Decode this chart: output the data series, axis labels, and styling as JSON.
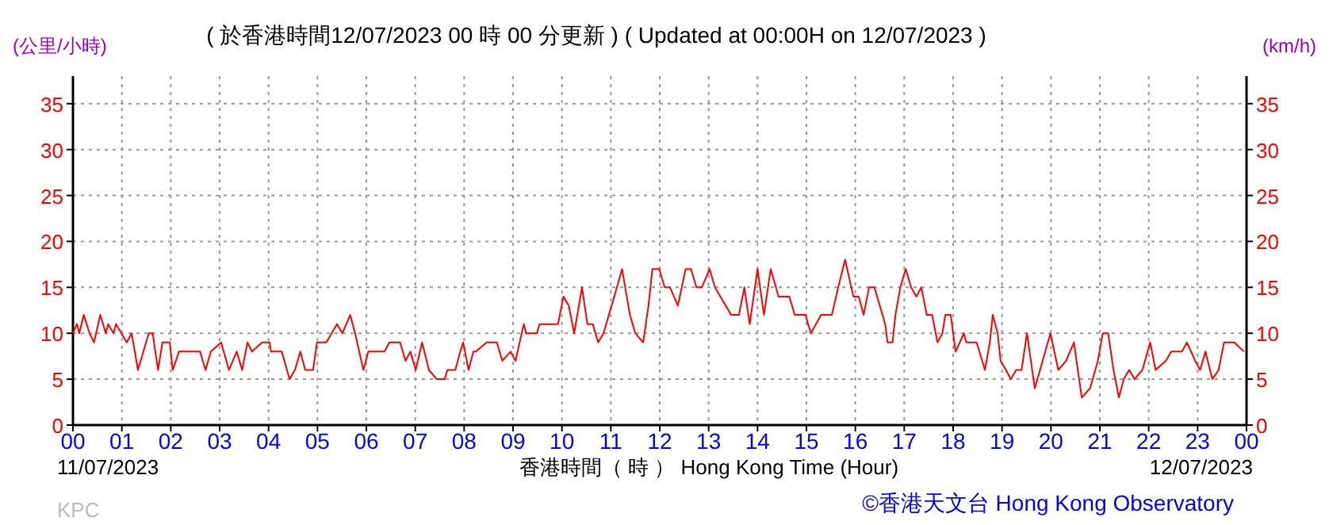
{
  "chart_data": {
    "type": "line",
    "title": "( 於香港時間12/07/2023 00 時 00 分更新 ) ( Updated at 00:00H on 12/07/2023 )",
    "xlabel": "香港時間（ 時 ） Hong Kong Time (Hour)",
    "ylabel": "(公里/小時)",
    "y2label": "(km/h)",
    "annotations": [
      "11/07/2023",
      "12/07/2023",
      "KPC",
      "©香港天文台 Hong Kong Observatory"
    ],
    "xlim": [
      0,
      24
    ],
    "xticks": [
      {
        "value": 0,
        "label": "00"
      },
      {
        "value": 1,
        "label": "01"
      },
      {
        "value": 2,
        "label": "02"
      },
      {
        "value": 3,
        "label": "03"
      },
      {
        "value": 4,
        "label": "04"
      },
      {
        "value": 5,
        "label": "05"
      },
      {
        "value": 6,
        "label": "06"
      },
      {
        "value": 7,
        "label": "07"
      },
      {
        "value": 8,
        "label": "08"
      },
      {
        "value": 9,
        "label": "09"
      },
      {
        "value": 10,
        "label": "10"
      },
      {
        "value": 11,
        "label": "11"
      },
      {
        "value": 12,
        "label": "12"
      },
      {
        "value": 13,
        "label": "13"
      },
      {
        "value": 14,
        "label": "14"
      },
      {
        "value": 15,
        "label": "15"
      },
      {
        "value": 16,
        "label": "16"
      },
      {
        "value": 17,
        "label": "17"
      },
      {
        "value": 18,
        "label": "18"
      },
      {
        "value": 19,
        "label": "19"
      },
      {
        "value": 20,
        "label": "20"
      },
      {
        "value": 21,
        "label": "21"
      },
      {
        "value": 22,
        "label": "22"
      },
      {
        "value": 23,
        "label": "23"
      },
      {
        "value": 24,
        "label": "00"
      }
    ],
    "ylim": [
      0,
      38
    ],
    "yticks": [
      0,
      5,
      10,
      15,
      20,
      25,
      30,
      35
    ],
    "y2lim": [
      0,
      38
    ],
    "y2ticks": [
      0,
      5,
      10,
      15,
      20,
      25,
      30,
      35
    ],
    "grid": true,
    "series": [
      {
        "color": "#ff0000",
        "x": [
          0,
          0.08,
          0.13,
          0.22,
          0.34,
          0.43,
          0.56,
          0.67,
          0.72,
          0.83,
          0.88,
          0.99,
          1.1,
          1.2,
          1.33,
          1.55,
          1.63,
          1.74,
          1.83,
          1.98,
          2.04,
          2.17,
          2.6,
          2.71,
          2.82,
          3.03,
          3.19,
          3.35,
          3.46,
          3.57,
          3.66,
          3.87,
          4.02,
          4.05,
          4.27,
          4.43,
          4.54,
          4.65,
          4.75,
          4.91,
          4.99,
          5.18,
          5.29,
          5.4,
          5.51,
          5.67,
          5.77,
          5.94,
          6.04,
          6.37,
          6.47,
          6.69,
          6.8,
          6.9,
          7.01,
          7.14,
          7.28,
          7.44,
          7.6,
          7.66,
          7.82,
          7.92,
          7.98,
          8.09,
          8.19,
          8.24,
          8.46,
          8.67,
          8.78,
          8.95,
          9.05,
          9.22,
          9.27,
          9.49,
          9.54,
          9.92,
          10.03,
          10.14,
          10.25,
          10.41,
          10.52,
          10.63,
          10.74,
          10.85,
          10.96,
          11.07,
          11.23,
          11.39,
          11.5,
          11.66,
          11.77,
          11.85,
          11.99,
          12.1,
          12.21,
          12.37,
          12.53,
          12.64,
          12.75,
          12.86,
          13.02,
          13.13,
          13.24,
          13.46,
          13.62,
          13.73,
          13.84,
          14,
          14.13,
          14.27,
          14.43,
          14.65,
          14.76,
          14.98,
          15.09,
          15.3,
          15.52,
          15.65,
          15.79,
          15.96,
          16.07,
          16.17,
          16.28,
          16.39,
          16.61,
          16.66,
          16.76,
          16.82,
          16.92,
          17.03,
          17.14,
          17.25,
          17.35,
          17.46,
          17.57,
          17.68,
          17.78,
          17.84,
          17.95,
          18.05,
          18.22,
          18.27,
          18.48,
          18.65,
          18.75,
          18.81,
          18.91,
          18.97,
          19.08,
          19.18,
          19.29,
          19.4,
          19.51,
          19.67,
          19.83,
          19.99,
          20.15,
          20.31,
          20.47,
          20.63,
          20.8,
          20.96,
          21.06,
          21.17,
          21.28,
          21.39,
          21.49,
          21.6,
          21.71,
          21.87,
          22.03,
          22.14,
          22.35,
          22.46,
          22.68,
          22.78,
          22.95,
          23.05,
          23.16,
          23.3,
          23.43,
          23.54,
          23.75,
          23.95
        ],
        "values": [
          10,
          11,
          10,
          12,
          10,
          9,
          12,
          10,
          11,
          10,
          11,
          10,
          9,
          10,
          6,
          10,
          10,
          6,
          9,
          9,
          6,
          8,
          8,
          6,
          8,
          9,
          6,
          8,
          6,
          9,
          8,
          9,
          9,
          8,
          8,
          5,
          6,
          8,
          6,
          6,
          9,
          9,
          10,
          11,
          10,
          12,
          10,
          6,
          8,
          8,
          9,
          9,
          7,
          8,
          6,
          9,
          6,
          5,
          5,
          6,
          6,
          8,
          9,
          6,
          8,
          8,
          9,
          9,
          7,
          8,
          7,
          11,
          10,
          10,
          11,
          11,
          14,
          13,
          10,
          15,
          11,
          11,
          9,
          10,
          12,
          14,
          17,
          12,
          10,
          9,
          13,
          17,
          17,
          15,
          15,
          13,
          17,
          17,
          15,
          15,
          17,
          15,
          14,
          12,
          12,
          15,
          11,
          17,
          12,
          17,
          14,
          14,
          12,
          12,
          10,
          12,
          12,
          15,
          18,
          14,
          14,
          12,
          15,
          15,
          11,
          9,
          9,
          12,
          15,
          17,
          15,
          14,
          15,
          12,
          12,
          9,
          10,
          12,
          12,
          8,
          10,
          9,
          9,
          6,
          9,
          12,
          10,
          7,
          6,
          5,
          6,
          6,
          10,
          4,
          7,
          10,
          6,
          7,
          9,
          3,
          4,
          7,
          10,
          10,
          6,
          3,
          5,
          6,
          5,
          6,
          9,
          6,
          7,
          8,
          8,
          9,
          7,
          6,
          8,
          5,
          6,
          9,
          9,
          8
        ]
      }
    ]
  }
}
